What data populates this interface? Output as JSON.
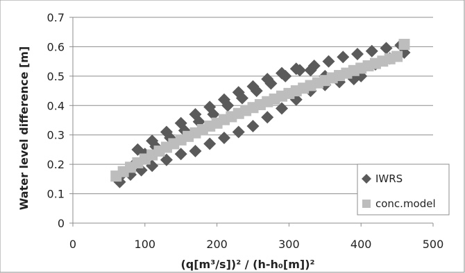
{
  "chart_data": {
    "type": "scatter",
    "title": "",
    "xlabel": "(q[m³/s])² / (h-h₀[m])²",
    "ylabel": "Water level difference [m]",
    "xlim": [
      0,
      500
    ],
    "ylim": [
      0,
      0.7
    ],
    "x_ticks": [
      "0",
      "100",
      "200",
      "300",
      "400",
      "500"
    ],
    "y_ticks": [
      "0",
      "0.1",
      "0.2",
      "0.3",
      "0.4",
      "0.5",
      "0.6",
      "0.7"
    ],
    "grid": "horizontal",
    "legend_position": "bottom-right",
    "series": [
      {
        "name": "IWRS",
        "marker": "diamond",
        "color": "#5a5a5a",
        "x": [
          65,
          80,
          95,
          110,
          130,
          150,
          170,
          190,
          210,
          230,
          250,
          270,
          290,
          310,
          330,
          350,
          370,
          390,
          400,
          420,
          440,
          460,
          70,
          85,
          100,
          115,
          135,
          155,
          175,
          195,
          215,
          235,
          255,
          275,
          295,
          315,
          335,
          355,
          375,
          395,
          415,
          435,
          455,
          90,
          110,
          130,
          150,
          170,
          190,
          210,
          230,
          250,
          270,
          290,
          310,
          330,
          350
        ],
        "y": [
          0.14,
          0.165,
          0.18,
          0.195,
          0.215,
          0.235,
          0.245,
          0.27,
          0.29,
          0.31,
          0.33,
          0.36,
          0.39,
          0.42,
          0.45,
          0.47,
          0.48,
          0.49,
          0.5,
          0.54,
          0.56,
          0.58,
          0.17,
          0.2,
          0.235,
          0.26,
          0.29,
          0.315,
          0.345,
          0.37,
          0.4,
          0.425,
          0.45,
          0.475,
          0.5,
          0.52,
          0.535,
          0.55,
          0.565,
          0.575,
          0.585,
          0.595,
          0.605,
          0.25,
          0.28,
          0.31,
          0.34,
          0.37,
          0.395,
          0.42,
          0.445,
          0.465,
          0.49,
          0.51,
          0.525,
          0.52,
          0.5
        ]
      },
      {
        "name": "conc.model",
        "marker": "square",
        "color": "#bdbdbd",
        "x": [
          60,
          70,
          80,
          90,
          100,
          110,
          120,
          130,
          140,
          150,
          160,
          170,
          180,
          190,
          200,
          210,
          220,
          230,
          240,
          250,
          260,
          270,
          280,
          290,
          300,
          310,
          320,
          330,
          340,
          350,
          360,
          370,
          380,
          390,
          400,
          410,
          420,
          430,
          440,
          450,
          460
        ],
        "y": [
          0.16,
          0.175,
          0.19,
          0.205,
          0.218,
          0.232,
          0.245,
          0.258,
          0.27,
          0.283,
          0.295,
          0.307,
          0.318,
          0.33,
          0.34,
          0.352,
          0.362,
          0.373,
          0.383,
          0.393,
          0.403,
          0.413,
          0.422,
          0.432,
          0.441,
          0.45,
          0.459,
          0.468,
          0.477,
          0.485,
          0.494,
          0.502,
          0.51,
          0.519,
          0.527,
          0.535,
          0.543,
          0.551,
          0.559,
          0.567,
          0.608
        ]
      }
    ]
  }
}
